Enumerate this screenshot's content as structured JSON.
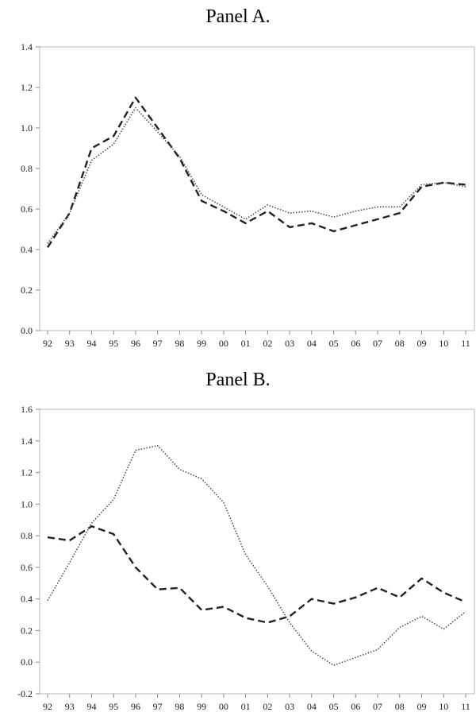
{
  "chart_data": [
    {
      "type": "line",
      "title": "Panel A.",
      "xlabel": "",
      "ylabel": "",
      "categories": [
        "92",
        "93",
        "94",
        "95",
        "96",
        "97",
        "98",
        "99",
        "00",
        "01",
        "02",
        "03",
        "04",
        "05",
        "06",
        "07",
        "08",
        "09",
        "10",
        "11"
      ],
      "ylim": [
        0.0,
        1.4
      ],
      "yticks": [
        "0.0",
        "0.2",
        "0.4",
        "0.6",
        "0.8",
        "1.0",
        "1.2",
        "1.4"
      ],
      "grid": false,
      "legend": "none",
      "series": [
        {
          "style": "dashed",
          "color": "#222222",
          "values": [
            0.41,
            0.58,
            0.9,
            0.96,
            1.15,
            1.0,
            0.85,
            0.64,
            0.59,
            0.53,
            0.59,
            0.51,
            0.53,
            0.49,
            0.52,
            0.55,
            0.58,
            0.71,
            0.73,
            0.72
          ]
        },
        {
          "style": "dotted",
          "color": "#444444",
          "values": [
            0.43,
            0.58,
            0.84,
            0.92,
            1.1,
            0.98,
            0.86,
            0.67,
            0.61,
            0.55,
            0.62,
            0.58,
            0.59,
            0.56,
            0.59,
            0.61,
            0.61,
            0.72,
            0.73,
            0.71
          ]
        }
      ]
    },
    {
      "type": "line",
      "title": "Panel B.",
      "xlabel": "",
      "ylabel": "",
      "categories": [
        "92",
        "93",
        "94",
        "95",
        "96",
        "97",
        "98",
        "99",
        "00",
        "01",
        "02",
        "03",
        "04",
        "05",
        "06",
        "07",
        "08",
        "09",
        "10",
        "11"
      ],
      "ylim": [
        -0.2,
        1.6
      ],
      "yticks": [
        "-0.2",
        "0.0",
        "0.2",
        "0.4",
        "0.6",
        "0.8",
        "1.0",
        "1.2",
        "1.4",
        "1.6"
      ],
      "grid": false,
      "legend": "none",
      "series": [
        {
          "style": "dashed",
          "color": "#222222",
          "values": [
            0.79,
            0.77,
            0.86,
            0.81,
            0.6,
            0.46,
            0.47,
            0.33,
            0.35,
            0.28,
            0.25,
            0.29,
            0.4,
            0.37,
            0.41,
            0.47,
            0.41,
            0.53,
            0.44,
            0.38
          ]
        },
        {
          "style": "dotted",
          "color": "#444444",
          "values": [
            0.39,
            0.63,
            0.88,
            1.03,
            1.34,
            1.37,
            1.22,
            1.16,
            1.01,
            0.68,
            0.48,
            0.25,
            0.07,
            -0.02,
            0.03,
            0.08,
            0.22,
            0.29,
            0.21,
            0.32
          ]
        }
      ]
    }
  ]
}
